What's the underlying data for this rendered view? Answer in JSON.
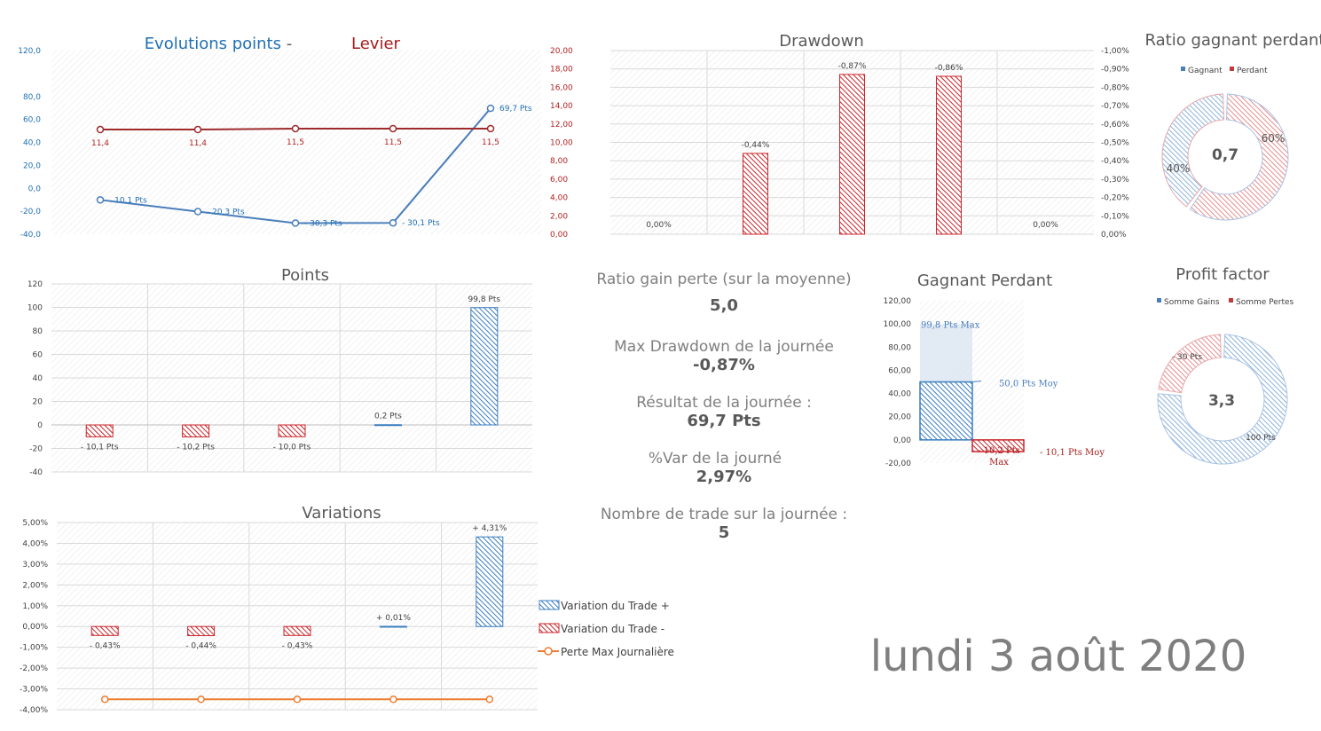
{
  "date_label": "lundi 3 août 2020",
  "summary": {
    "ratio_label": "Ratio gain perte (sur la moyenne)",
    "ratio_value": "5,0",
    "drawdown_label": "Max Drawdown de la journée",
    "drawdown_value": "-0,87%",
    "result_label": "Résultat de la journée :",
    "result_value": "69,7 Pts",
    "var_label": "%Var de la journé",
    "var_value": "2,97%",
    "trades_label": "Nombre de trade sur la journée :",
    "trades_value": "5"
  },
  "colors": {
    "blue": "#4a7ebb",
    "red": "#c0393b",
    "orange": "#ed7d31",
    "darkred": "#a61c1c"
  },
  "chart_data": [
    {
      "id": "evolution",
      "type": "line",
      "title_part1": "Evolutions points",
      "title_sep": " - ",
      "title_part2": "Levier",
      "x": [
        1,
        2,
        3,
        4,
        5
      ],
      "series": [
        {
          "axis": "left",
          "values": [
            -10.1,
            -20.3,
            -30.3,
            -30.1,
            69.7
          ],
          "labels": [
            "- 10,1 Pts",
            "- 20,3 Pts",
            "- 30,3 Pts",
            "- 30,1 Pts",
            "69,7 Pts"
          ]
        },
        {
          "axis": "right",
          "values": [
            11.4,
            11.4,
            11.5,
            11.5,
            11.5
          ],
          "labels": [
            "11,4",
            "11,4",
            "11,5",
            "11,5",
            "11,5"
          ]
        }
      ],
      "left_ylim": [
        -40,
        120
      ],
      "left_ticks": [
        "120,0",
        "80,0",
        "60,0",
        "40,0",
        "20,0",
        "0,0",
        "-20,0",
        "-40,0"
      ],
      "right_ylim": [
        0,
        20
      ],
      "right_ticks": [
        "20,00",
        "18,00",
        "16,00",
        "14,00",
        "12,00",
        "10,00",
        "8,00",
        "6,00",
        "4,00",
        "2,00",
        "0,00"
      ]
    },
    {
      "id": "drawdown",
      "type": "bar",
      "title": "Drawdown",
      "values": [
        0.0,
        -0.44,
        -0.87,
        -0.86,
        0.0
      ],
      "labels": [
        "0,00%",
        "-0,44%",
        "-0,87%",
        "-0,86%",
        "0,00%"
      ],
      "ylim": [
        0,
        -1.0
      ],
      "ticks": [
        "-1,00%",
        "-0,90%",
        "-0,80%",
        "-0,70%",
        "-0,60%",
        "-0,50%",
        "-0,40%",
        "-0,30%",
        "-0,20%",
        "-0,10%",
        "0,00%"
      ]
    },
    {
      "id": "ratio",
      "type": "pie",
      "title": "Ratio gagnant perdant",
      "legend": [
        "Gagnant",
        "Perdant"
      ],
      "values": [
        40,
        60
      ],
      "labels": [
        "40%",
        "60%"
      ],
      "center": "0,7"
    },
    {
      "id": "points",
      "type": "bar",
      "title": "Points",
      "values": [
        -10.1,
        -10.2,
        -10.0,
        0.2,
        99.8
      ],
      "labels": [
        "- 10,1 Pts",
        "- 10,2 Pts",
        "- 10,0 Pts",
        "0,2 Pts",
        "99,8 Pts"
      ],
      "ylim": [
        -40,
        120
      ],
      "ticks": [
        "120",
        "100",
        "80",
        "60",
        "40",
        "20",
        "0",
        "-20",
        "-40"
      ]
    },
    {
      "id": "gagnant",
      "type": "bar",
      "title": "Gagnant Perdant",
      "max_value": 99.8,
      "max_label": "99,8 Pts Max",
      "avg_win": 50.0,
      "avg_win_label": "50,0 Pts Moy",
      "min_value": -10.2,
      "min_label": "- 10,2 Pts",
      "min_label2": "Max",
      "avg_loss": -10.1,
      "avg_loss_label": "- 10,1 Pts Moy",
      "ylim": [
        -20,
        120
      ],
      "ticks": [
        "120,00",
        "100,00",
        "80,00",
        "60,00",
        "40,00",
        "20,00",
        "0,00",
        "-20,00"
      ]
    },
    {
      "id": "profit",
      "type": "pie",
      "title": "Profit factor",
      "legend": [
        "Somme Gains",
        "Somme Pertes"
      ],
      "values": [
        100,
        30
      ],
      "labels": [
        "100 Pts",
        "- 30 Pts"
      ],
      "center": "3,3"
    },
    {
      "id": "variations",
      "type": "bar",
      "title": "Variations",
      "values": [
        -0.43,
        -0.44,
        -0.43,
        0.01,
        4.31
      ],
      "labels": [
        "- 0,43%",
        "- 0,44%",
        "- 0,43%",
        "+ 0,01%",
        "+ 4,31%"
      ],
      "perte_max": -3.5,
      "ylim": [
        -4,
        5
      ],
      "ticks": [
        "5,00%",
        "4,00%",
        "3,00%",
        "2,00%",
        "1,00%",
        "0,00%",
        "-1,00%",
        "-2,00%",
        "-3,00%",
        "-4,00%"
      ],
      "legend": [
        "Variation du Trade +",
        "Variation du Trade -",
        "Perte Max Journalière"
      ]
    }
  ]
}
